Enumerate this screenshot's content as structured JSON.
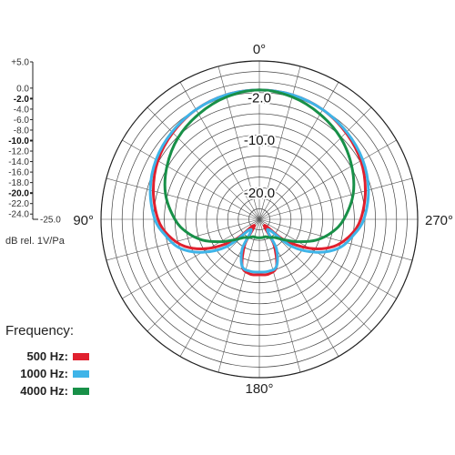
{
  "chart_data": {
    "type": "polar-line",
    "angle_labels": [
      {
        "text": "0°",
        "angle": 0
      },
      {
        "text": "90°",
        "angle": 90
      },
      {
        "text": "180°",
        "angle": 180
      },
      {
        "text": "270°",
        "angle": 270
      }
    ],
    "radial_axis": {
      "range": [
        -25,
        5
      ],
      "ring_step": 2,
      "ring_labels": [
        "-2.0",
        "-10.0",
        "-20.0"
      ],
      "scale_ticks": [
        "+5.0",
        "0.0",
        "-2.0",
        "-4.0",
        "-6.0",
        "-8.0",
        "-10.0",
        "-12.0",
        "-14.0",
        "-16.0",
        "-18.0",
        "-20.0",
        "-22.0",
        "-24.0",
        "-25.0"
      ],
      "scale_major": [
        "-2.0",
        "-10.0",
        "-20.0"
      ],
      "unit_label": "dB rel. 1V/Pa"
    },
    "grid": true,
    "legend": {
      "title": "Frequency:",
      "placement": "bottom-left",
      "entries": [
        {
          "name": "500 Hz:",
          "color": "#e0202e"
        },
        {
          "name": "1000 Hz:",
          "color": "#3fb4e8"
        },
        {
          "name": "4000 Hz:",
          "color": "#189048"
        }
      ]
    },
    "series": [
      {
        "name": "500 Hz:",
        "color": "#e0202e",
        "angles": [
          0,
          15,
          30,
          45,
          60,
          75,
          90,
          100,
          110,
          120,
          130,
          140,
          150,
          160,
          170,
          180,
          190,
          200,
          210,
          220,
          230,
          240,
          250,
          260,
          270,
          285,
          300,
          315,
          330,
          345
        ],
        "values": [
          -0.5,
          -0.6,
          -1.0,
          -1.8,
          -2.8,
          -4.2,
          -5.8,
          -7.5,
          -10.0,
          -14.0,
          -19.0,
          -23.5,
          -19.5,
          -15.5,
          -14.5,
          -14.5,
          -14.5,
          -15.5,
          -19.5,
          -23.5,
          -19.0,
          -14.0,
          -10.0,
          -7.5,
          -5.8,
          -4.2,
          -2.8,
          -1.8,
          -1.0,
          -0.6
        ]
      },
      {
        "name": "1000 Hz:",
        "color": "#3fb4e8",
        "angles": [
          0,
          15,
          30,
          45,
          60,
          75,
          90,
          100,
          110,
          120,
          130,
          140,
          150,
          160,
          170,
          180,
          190,
          200,
          210,
          220,
          230,
          240,
          250,
          260,
          270,
          285,
          300,
          315,
          330,
          345
        ],
        "values": [
          -0.5,
          -0.6,
          -1.0,
          -1.6,
          -2.4,
          -3.6,
          -5.2,
          -7.0,
          -9.0,
          -12.5,
          -17.0,
          -22.5,
          -18.5,
          -15.5,
          -15.0,
          -15.0,
          -15.0,
          -15.5,
          -18.5,
          -22.5,
          -17.0,
          -12.5,
          -9.0,
          -7.0,
          -5.2,
          -3.6,
          -2.4,
          -1.6,
          -1.0,
          -0.6
        ]
      },
      {
        "name": "4000 Hz:",
        "color": "#189048",
        "angles": [
          0,
          15,
          30,
          45,
          60,
          75,
          90,
          100,
          110,
          120,
          130,
          140,
          150,
          160,
          170,
          180,
          190,
          200,
          210,
          220,
          230,
          240,
          250,
          260,
          270,
          285,
          300,
          315,
          330,
          345
        ],
        "values": [
          -0.5,
          -1.0,
          -2.0,
          -3.2,
          -4.8,
          -6.6,
          -9.0,
          -11.0,
          -13.5,
          -16.5,
          -19.0,
          -20.5,
          -21.0,
          -21.5,
          -21.5,
          -21.5,
          -21.5,
          -21.5,
          -21.0,
          -20.5,
          -19.0,
          -16.5,
          -13.5,
          -11.0,
          -9.0,
          -6.6,
          -4.8,
          -3.2,
          -2.0,
          -1.0
        ]
      }
    ]
  }
}
